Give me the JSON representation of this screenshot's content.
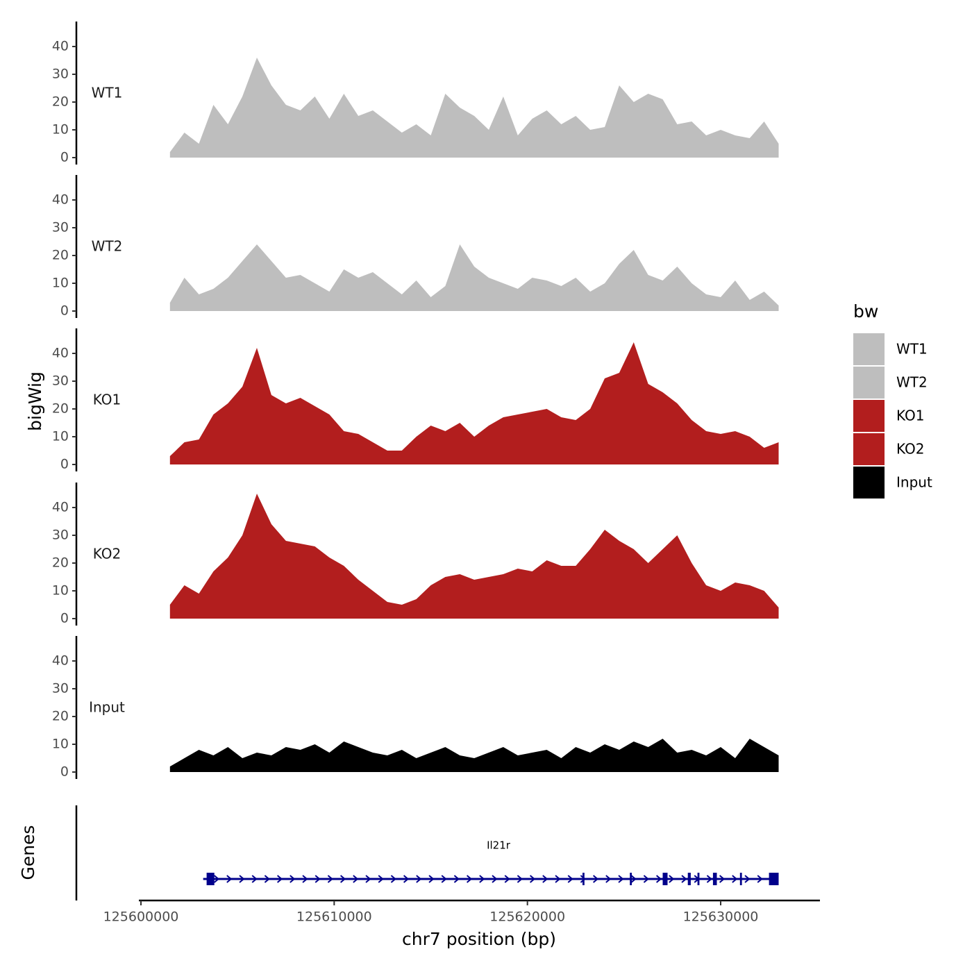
{
  "chart_data": {
    "type": "area",
    "title": "",
    "ylabel": "bigWig",
    "xlabel": "chr7 position (bp)",
    "genes_ylabel": "Genes",
    "xlim": [
      125600000,
      125635000
    ],
    "x_ticks": [
      125600000,
      125610000,
      125620000,
      125630000
    ],
    "x_tick_labels": [
      "125600000",
      "125610000",
      "125620000",
      "125630000"
    ],
    "ylim": [
      0,
      49
    ],
    "y_ticks": [
      0,
      10,
      20,
      30,
      40
    ],
    "y_tick_labels": [
      "0",
      "10",
      "20",
      "30",
      "40"
    ],
    "grid": false,
    "legend": {
      "title": "bw",
      "position": "right",
      "entries": [
        {
          "label": "WT1",
          "color": "#bebebe"
        },
        {
          "label": "WT2",
          "color": "#bebebe"
        },
        {
          "label": "KO1",
          "color": "#b21e1e"
        },
        {
          "label": "KO2",
          "color": "#b21e1e"
        },
        {
          "label": "Input",
          "color": "#000000"
        }
      ]
    },
    "series": [
      {
        "name": "WT1",
        "color": "#bebebe",
        "x": [
          125601500,
          125602250,
          125603000,
          125603750,
          125604500,
          125605250,
          125606000,
          125606750,
          125607500,
          125608250,
          125609000,
          125609750,
          125610500,
          125611250,
          125612000,
          125612750,
          125613500,
          125614250,
          125615000,
          125615750,
          125616500,
          125617250,
          125618000,
          125618750,
          125619500,
          125620250,
          125621000,
          125621750,
          125622500,
          125623250,
          125624000,
          125624750,
          125625500,
          125626250,
          125627000,
          125627750,
          125628500,
          125629250,
          125630000,
          125630750,
          125631500,
          125632250,
          125633000
        ],
        "values": [
          2,
          9,
          5,
          19,
          12,
          22,
          36,
          26,
          19,
          17,
          22,
          14,
          23,
          15,
          17,
          13,
          9,
          12,
          8,
          23,
          18,
          15,
          10,
          22,
          8,
          14,
          17,
          12,
          15,
          10,
          11,
          26,
          20,
          23,
          21,
          12,
          13,
          8,
          10,
          8,
          7,
          13,
          5
        ]
      },
      {
        "name": "WT2",
        "color": "#bebebe",
        "x": [
          125601500,
          125602250,
          125603000,
          125603750,
          125604500,
          125605250,
          125606000,
          125606750,
          125607500,
          125608250,
          125609000,
          125609750,
          125610500,
          125611250,
          125612000,
          125612750,
          125613500,
          125614250,
          125615000,
          125615750,
          125616500,
          125617250,
          125618000,
          125618750,
          125619500,
          125620250,
          125621000,
          125621750,
          125622500,
          125623250,
          125624000,
          125624750,
          125625500,
          125626250,
          125627000,
          125627750,
          125628500,
          125629250,
          125630000,
          125630750,
          125631500,
          125632250,
          125633000
        ],
        "values": [
          3,
          12,
          6,
          8,
          12,
          18,
          24,
          18,
          12,
          13,
          10,
          7,
          15,
          12,
          14,
          10,
          6,
          11,
          5,
          9,
          24,
          16,
          12,
          10,
          8,
          12,
          11,
          9,
          12,
          7,
          10,
          17,
          22,
          13,
          11,
          16,
          10,
          6,
          5,
          11,
          4,
          7,
          2
        ]
      },
      {
        "name": "KO1",
        "color": "#b21e1e",
        "x": [
          125601500,
          125602250,
          125603000,
          125603750,
          125604500,
          125605250,
          125606000,
          125606750,
          125607500,
          125608250,
          125609000,
          125609750,
          125610500,
          125611250,
          125612000,
          125612750,
          125613500,
          125614250,
          125615000,
          125615750,
          125616500,
          125617250,
          125618000,
          125618750,
          125619500,
          125620250,
          125621000,
          125621750,
          125622500,
          125623250,
          125624000,
          125624750,
          125625500,
          125626250,
          125627000,
          125627750,
          125628500,
          125629250,
          125630000,
          125630750,
          125631500,
          125632250,
          125633000
        ],
        "values": [
          3,
          8,
          9,
          18,
          22,
          28,
          42,
          25,
          22,
          24,
          21,
          18,
          12,
          11,
          8,
          5,
          5,
          10,
          14,
          12,
          15,
          10,
          14,
          17,
          18,
          19,
          20,
          17,
          16,
          20,
          31,
          33,
          44,
          29,
          26,
          22,
          16,
          12,
          11,
          12,
          10,
          6,
          8
        ]
      },
      {
        "name": "KO2",
        "color": "#b21e1e",
        "x": [
          125601500,
          125602250,
          125603000,
          125603750,
          125604500,
          125605250,
          125606000,
          125606750,
          125607500,
          125608250,
          125609000,
          125609750,
          125610500,
          125611250,
          125612000,
          125612750,
          125613500,
          125614250,
          125615000,
          125615750,
          125616500,
          125617250,
          125618000,
          125618750,
          125619500,
          125620250,
          125621000,
          125621750,
          125622500,
          125623250,
          125624000,
          125624750,
          125625500,
          125626250,
          125627000,
          125627750,
          125628500,
          125629250,
          125630000,
          125630750,
          125631500,
          125632250,
          125633000
        ],
        "values": [
          5,
          12,
          9,
          17,
          22,
          30,
          45,
          34,
          28,
          27,
          26,
          22,
          19,
          14,
          10,
          6,
          5,
          7,
          12,
          15,
          16,
          14,
          15,
          16,
          18,
          17,
          21,
          19,
          19,
          25,
          32,
          28,
          25,
          20,
          25,
          30,
          20,
          12,
          10,
          13,
          12,
          10,
          4
        ]
      },
      {
        "name": "Input",
        "color": "#000000",
        "x": [
          125601500,
          125602250,
          125603000,
          125603750,
          125604500,
          125605250,
          125606000,
          125606750,
          125607500,
          125608250,
          125609000,
          125609750,
          125610500,
          125611250,
          125612000,
          125612750,
          125613500,
          125614250,
          125615000,
          125615750,
          125616500,
          125617250,
          125618000,
          125618750,
          125619500,
          125620250,
          125621000,
          125621750,
          125622500,
          125623250,
          125624000,
          125624750,
          125625500,
          125626250,
          125627000,
          125627750,
          125628500,
          125629250,
          125630000,
          125630750,
          125631500,
          125632250,
          125633000
        ],
        "values": [
          2,
          5,
          8,
          6,
          9,
          5,
          7,
          6,
          9,
          8,
          10,
          7,
          11,
          9,
          7,
          6,
          8,
          5,
          7,
          9,
          6,
          5,
          7,
          9,
          6,
          7,
          8,
          5,
          9,
          7,
          10,
          8,
          11,
          9,
          12,
          7,
          8,
          6,
          9,
          5,
          12,
          9,
          6
        ]
      }
    ],
    "gene": {
      "name": "Il21r",
      "strand": "+",
      "color": "#00008b",
      "start": 125603400,
      "end": 125633000,
      "exons": [
        [
          125603400,
          125603800
        ],
        [
          125622850,
          125622950
        ],
        [
          125625300,
          125625400
        ],
        [
          125627000,
          125627250
        ],
        [
          125628300,
          125628450
        ],
        [
          125628800,
          125628900
        ],
        [
          125629600,
          125629800
        ],
        [
          125631000,
          125631100
        ],
        [
          125632500,
          125633000
        ]
      ]
    }
  }
}
